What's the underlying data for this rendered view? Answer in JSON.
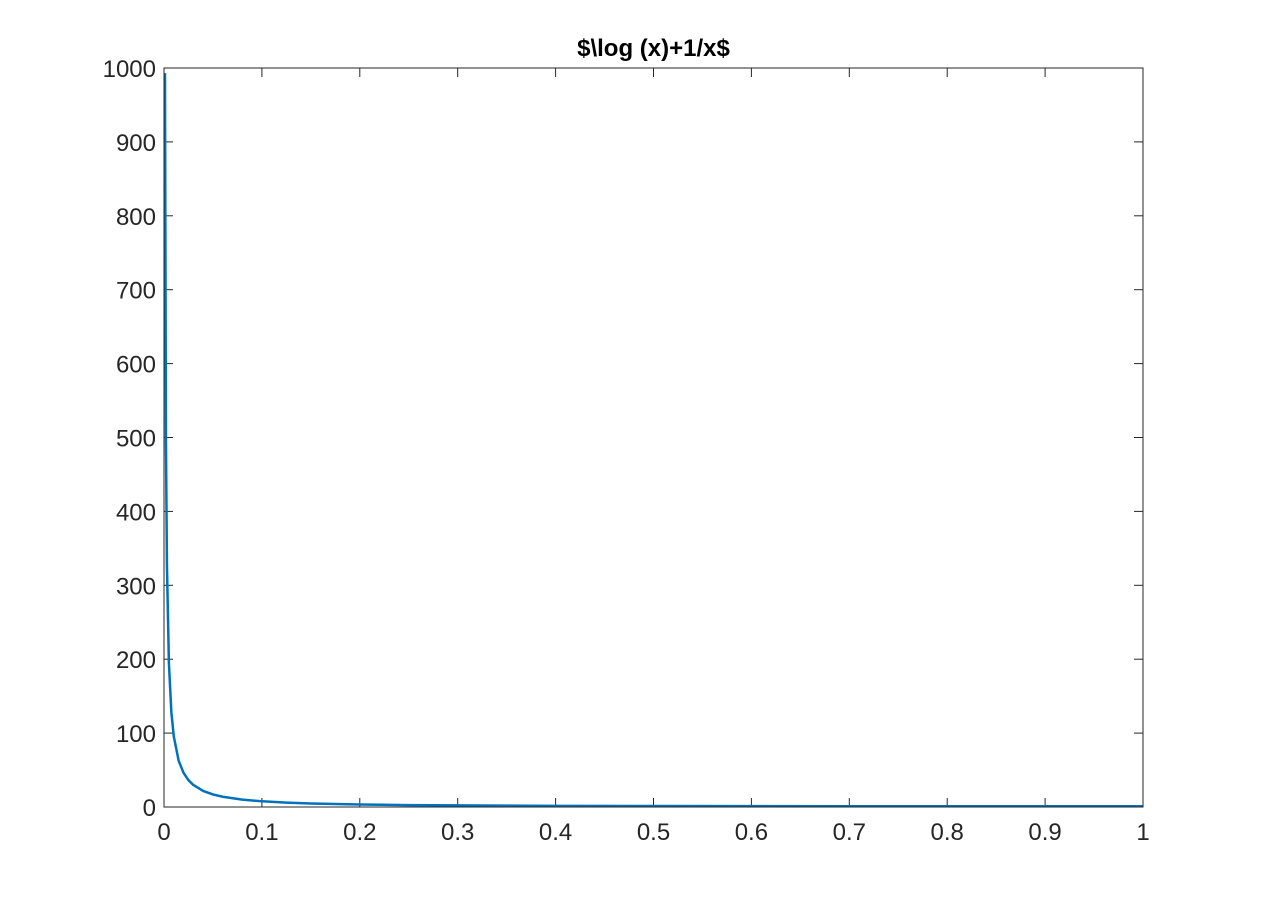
{
  "chart_data": {
    "type": "line",
    "title": "$\\log (x)+1/x$",
    "xlabel": "",
    "ylabel": "",
    "xlim": [
      0,
      1
    ],
    "ylim": [
      0,
      1000
    ],
    "xticks": [
      0,
      0.1,
      0.2,
      0.3,
      0.4,
      0.5,
      0.6,
      0.7,
      0.8,
      0.9,
      1
    ],
    "xtick_labels": [
      "0",
      "0.1",
      "0.2",
      "0.3",
      "0.4",
      "0.5",
      "0.6",
      "0.7",
      "0.8",
      "0.9",
      "1"
    ],
    "yticks": [
      0,
      100,
      200,
      300,
      400,
      500,
      600,
      700,
      800,
      900,
      1000
    ],
    "ytick_labels": [
      "0",
      "100",
      "200",
      "300",
      "400",
      "500",
      "600",
      "700",
      "800",
      "900",
      "1000"
    ],
    "grid": false,
    "line_color": "#0072BD",
    "series": [
      {
        "x": [
          0.001,
          0.002,
          0.003,
          0.005,
          0.0075,
          0.01,
          0.015,
          0.02,
          0.025,
          0.03,
          0.04,
          0.05,
          0.06,
          0.08,
          0.1,
          0.125,
          0.15,
          0.2,
          0.25,
          0.3,
          0.4,
          0.5,
          0.6,
          0.7,
          0.8,
          0.9,
          1.0
        ],
        "y": [
          993.09,
          493.79,
          327.53,
          194.7,
          128.43,
          95.39,
          62.47,
          46.09,
          36.31,
          29.83,
          21.78,
          17.0,
          13.85,
          9.99,
          7.7,
          6.0,
          4.77,
          3.39,
          2.61,
          2.13,
          1.58,
          1.31,
          1.16,
          1.07,
          1.03,
          1.01,
          1.0
        ]
      }
    ]
  }
}
